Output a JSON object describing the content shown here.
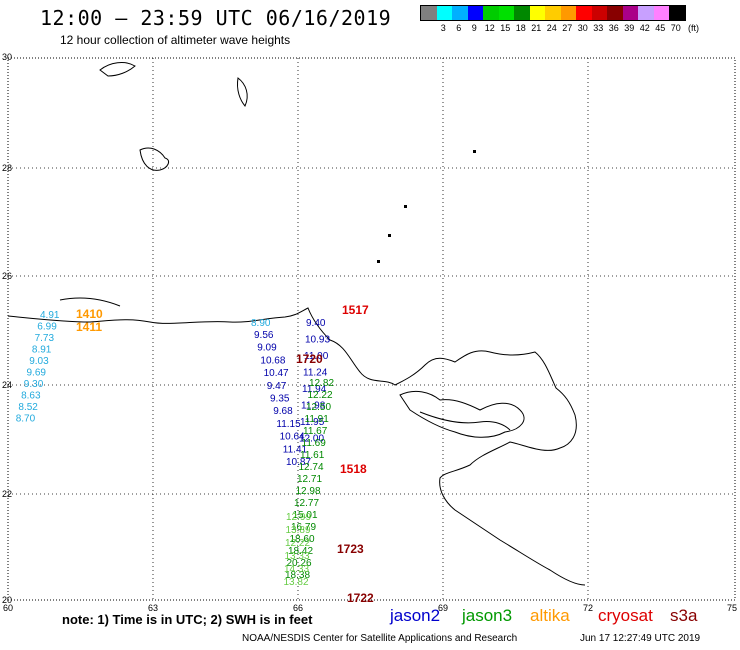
{
  "header": {
    "title": "12:00 – 23:59 UTC 06/16/2019",
    "subtitle": "12 hour collection of altimeter wave heights"
  },
  "legend": {
    "unit": "(ft)",
    "colors": [
      "#808080",
      "#00ffff",
      "#00b0ff",
      "#0000ff",
      "#00cc00",
      "#00e000",
      "#008800",
      "#ffff00",
      "#ffcc00",
      "#ff9900",
      "#ff0000",
      "#cc0000",
      "#880000",
      "#aa0088",
      "#c8a0ff",
      "#ff80ff",
      "#000000"
    ],
    "ticks": [
      "3",
      "6",
      "9",
      "12",
      "15",
      "18",
      "21",
      "24",
      "27",
      "30",
      "33",
      "36",
      "39",
      "42",
      "45",
      "70"
    ]
  },
  "axes": {
    "lat_labels": [
      "30",
      "28",
      "26",
      "24",
      "22",
      "20"
    ],
    "lon_labels": [
      "60",
      "63",
      "66",
      "69",
      "72",
      "75"
    ]
  },
  "passes": [
    {
      "id": "1410",
      "color": "#ff9900",
      "values": [
        "4.91",
        "6.99",
        "7.73",
        "8.91",
        "9.03",
        "9.69",
        "9.30",
        "8.63",
        "8.52",
        "8.70"
      ],
      "value_color": "#22aadd"
    },
    {
      "id": "1411",
      "color": "#ff9900",
      "values": [],
      "value_color": "#ff9900"
    },
    {
      "id": "1517",
      "color": "#dd0000",
      "values": [],
      "value_color": "#dd0000"
    },
    {
      "id": "1518",
      "color": "#dd0000",
      "values": [],
      "value_color": "#dd0000"
    },
    {
      "id": "1720",
      "color": "#880000",
      "values": [],
      "value_color": "#880000"
    },
    {
      "id": "1723",
      "color": "#880000",
      "values": [],
      "value_color": "#880000"
    },
    {
      "id": "1722",
      "color": "#880000",
      "values": [],
      "value_color": "#880000"
    }
  ],
  "track_cyan": [
    "8.90"
  ],
  "track_blue_a": [
    "9.56",
    "9.09",
    "10.68",
    "10.47",
    "9.47",
    "9.35",
    "9.68",
    "11.15",
    "10.64",
    "11.41",
    "10.87"
  ],
  "track_blue_b": [
    "9.40",
    "10.93",
    "11.00",
    "11.24",
    "11.94",
    "11.98",
    "11.95",
    "12.00"
  ],
  "track_green": [
    "12.82",
    "12.22",
    "12.50",
    "11.91",
    "11.67",
    "11.69",
    "11.61",
    "12.74",
    "12.71",
    "12.98",
    "12.77",
    "15.01",
    "16.79",
    "18.60",
    "18.42",
    "20.26",
    "18.38"
  ],
  "track_lightgreen": [
    "12.99",
    "13.89",
    "12.22",
    "13.33",
    "14.33",
    "13.82"
  ],
  "footer": {
    "note": "note:  1) Time is in UTC;  2) SWH is in feet",
    "sats": [
      {
        "name": "jason2",
        "color": "#0000cc"
      },
      {
        "name": "jason3",
        "color": "#009900"
      },
      {
        "name": "altika",
        "color": "#ff9900"
      },
      {
        "name": "cryosat",
        "color": "#dd0000"
      },
      {
        "name": "s3a",
        "color": "#880000"
      }
    ],
    "credit": "NOAA/NESDIS Center for Satellite Applications and Research",
    "timestamp": "Jun 17 12:27:49 UTC 2019"
  }
}
